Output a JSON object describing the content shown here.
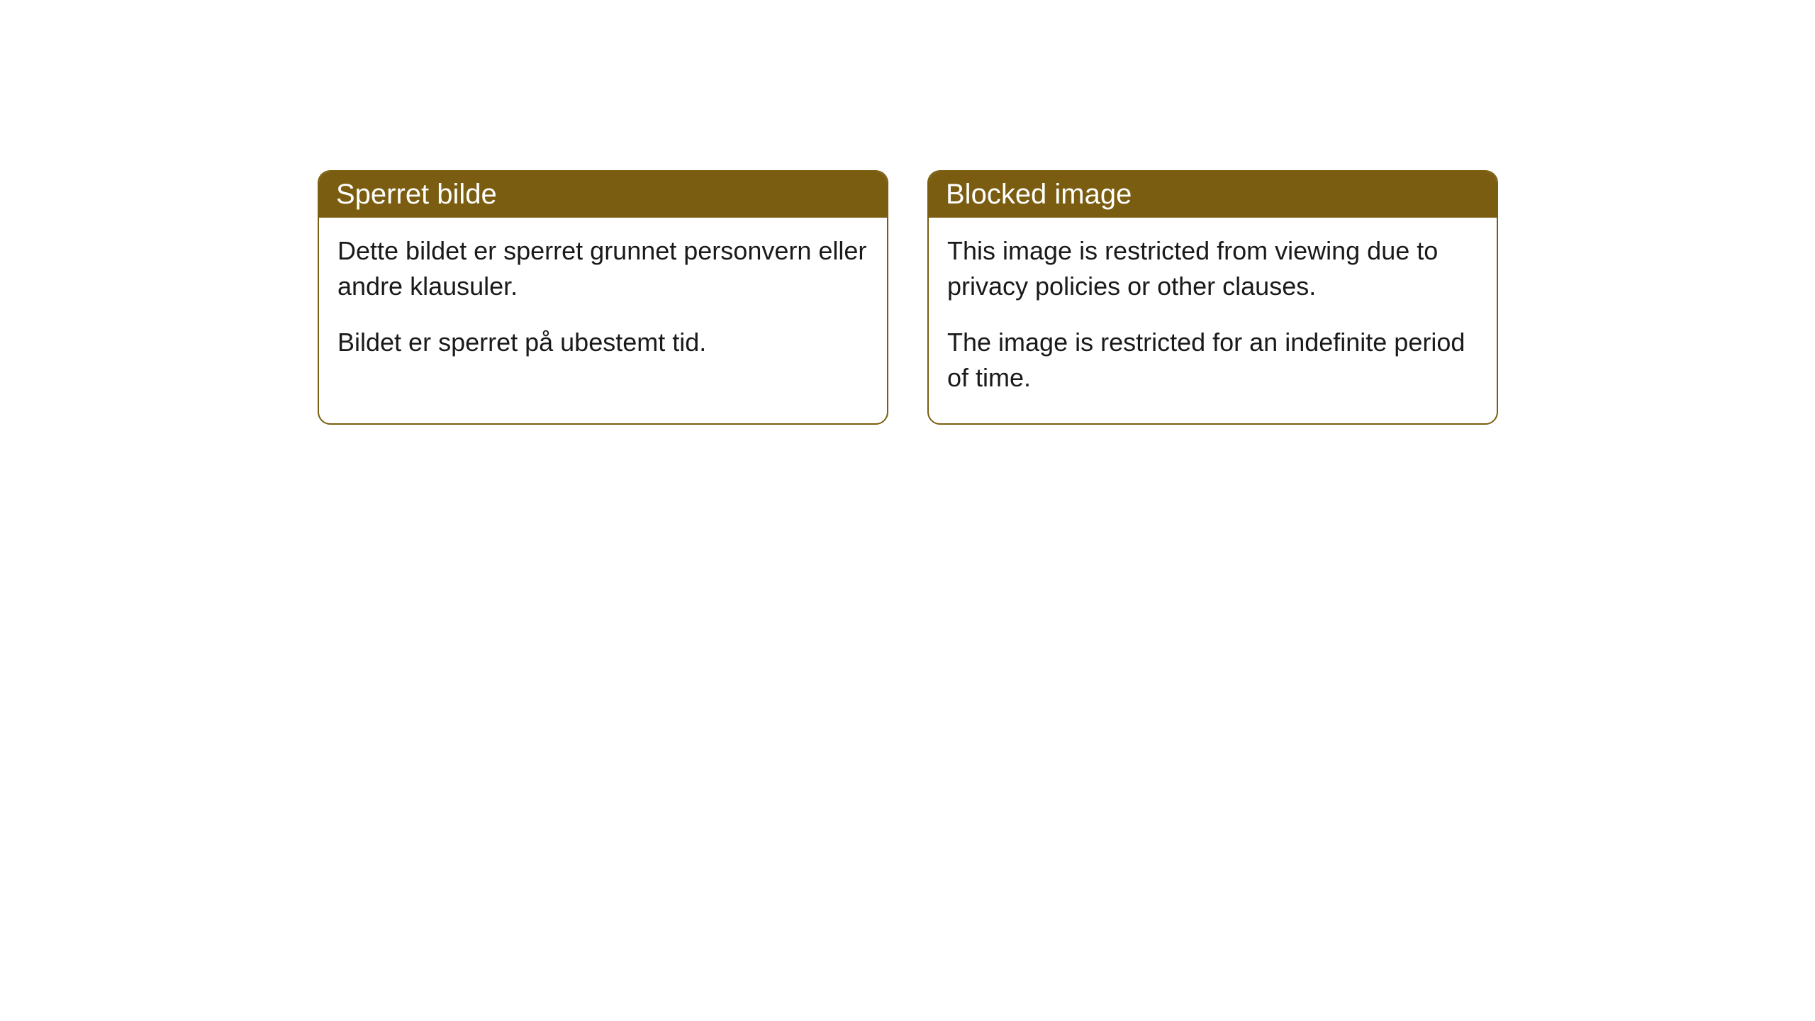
{
  "cards": [
    {
      "title": "Sperret bilde",
      "paragraph1": "Dette bildet er sperret grunnet personvern eller andre klausuler.",
      "paragraph2": "Bildet er sperret på ubestemt tid."
    },
    {
      "title": "Blocked image",
      "paragraph1": "This image is restricted from viewing due to privacy policies or other clauses.",
      "paragraph2": "The image is restricted for an indefinite period of time."
    }
  ],
  "styling": {
    "header_bg_color": "#7a5d10",
    "header_text_color": "#ffffff",
    "border_color": "#7a5d10",
    "body_bg_color": "#ffffff",
    "body_text_color": "#1a1a1a",
    "border_radius": 18,
    "title_fontsize": 40,
    "body_fontsize": 36
  }
}
